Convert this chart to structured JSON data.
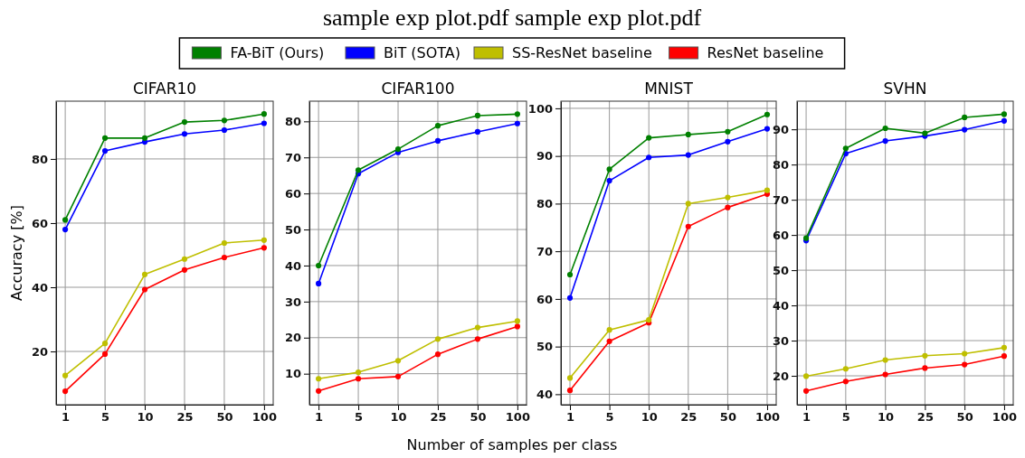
{
  "chart_data": [
    {
      "type": "line",
      "title": "CIFAR10",
      "ylabel": "Accuracy [%]",
      "annotations": [
        "sample exp plot.pdf sample exp plot.pdf"
      ],
      "legend": "top",
      "grid": true,
      "marker": "circle",
      "tick_labels": "xy",
      "categories": [
        "1",
        "5",
        "10",
        "25",
        "50",
        "100"
      ],
      "ylim": [
        3.4,
        98
      ],
      "yticks": [
        20,
        40,
        60,
        80
      ],
      "series": [
        {
          "name": "FA-BiT (Ours)",
          "color": "#008000",
          "values": [
            61,
            86.5,
            86.5,
            91.5,
            92,
            94
          ]
        },
        {
          "name": "BiT (SOTA)",
          "color": "#0000ff",
          "values": [
            58,
            82.5,
            85.3,
            87.8,
            89,
            91.1
          ]
        },
        {
          "name": "SS-ResNet baseline",
          "color": "#bfbf00",
          "values": [
            12.5,
            22.5,
            44,
            48.8,
            53.8,
            54.7
          ]
        },
        {
          "name": "ResNet baseline",
          "color": "#ff0000",
          "values": [
            7.6,
            19.2,
            39.3,
            45.4,
            49.3,
            52.3
          ]
        }
      ]
    },
    {
      "type": "line",
      "title": "CIFAR100",
      "xlabel": "Number of samples per class",
      "grid": true,
      "marker": "circle",
      "categories": [
        "1",
        "5",
        "10",
        "25",
        "50",
        "100"
      ],
      "ylim": [
        1.4,
        85.6
      ],
      "yticks": [
        10,
        20,
        30,
        40,
        50,
        60,
        70,
        80
      ],
      "series": [
        {
          "color": "#008000",
          "values": [
            40,
            66.5,
            72.3,
            78.8,
            81.6,
            82
          ]
        },
        {
          "color": "#0000ff",
          "values": [
            35,
            65.5,
            71.4,
            74.6,
            77.1,
            79.4
          ]
        },
        {
          "color": "#bfbf00",
          "values": [
            8.6,
            10.4,
            13.6,
            19.6,
            22.8,
            24.6
          ]
        },
        {
          "color": "#ff0000",
          "values": [
            5.2,
            8.6,
            9.2,
            15.4,
            19.6,
            23.1
          ]
        }
      ]
    },
    {
      "type": "line",
      "title": "MNIST",
      "grid": true,
      "marker": "circle",
      "categories": [
        "1",
        "5",
        "10",
        "25",
        "50",
        "100"
      ],
      "ylim": [
        37.8,
        101.5
      ],
      "yticks": [
        40,
        50,
        60,
        70,
        80,
        90,
        100
      ],
      "series": [
        {
          "color": "#008000",
          "values": [
            65.1,
            87.2,
            93.8,
            94.5,
            95.1,
            98.7
          ]
        },
        {
          "color": "#0000ff",
          "values": [
            60.2,
            84.8,
            89.7,
            90.2,
            93,
            95.7
          ]
        },
        {
          "color": "#bfbf00",
          "values": [
            43.4,
            53.5,
            55.6,
            80,
            81.3,
            82.8
          ]
        },
        {
          "color": "#ff0000",
          "values": [
            40.8,
            51.1,
            55,
            75.2,
            79.2,
            82
          ]
        }
      ]
    },
    {
      "type": "line",
      "title": "SVHN",
      "grid": true,
      "marker": "circle",
      "categories": [
        "1",
        "5",
        "10",
        "25",
        "50",
        "100"
      ],
      "ylim": [
        11.8,
        98
      ],
      "yticks": [
        20,
        30,
        40,
        50,
        60,
        70,
        80,
        90
      ],
      "series": [
        {
          "color": "#008000",
          "values": [
            59.1,
            84.6,
            90.3,
            88.9,
            93.4,
            94.3
          ]
        },
        {
          "color": "#0000ff",
          "values": [
            58.4,
            83.1,
            86.7,
            88.1,
            89.9,
            92.4
          ]
        },
        {
          "color": "#bfbf00",
          "values": [
            19.9,
            22,
            24.5,
            25.7,
            26.3,
            28
          ]
        },
        {
          "color": "#ff0000",
          "values": [
            15.7,
            18.4,
            20.4,
            22.2,
            23.2,
            25.6
          ]
        }
      ]
    }
  ]
}
